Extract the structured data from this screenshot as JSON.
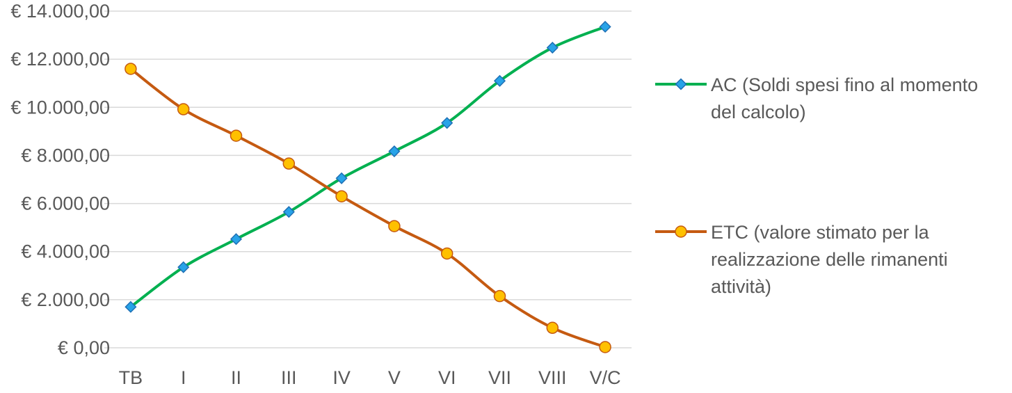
{
  "chart_data": {
    "type": "line",
    "categories": [
      "TB",
      "I",
      "II",
      "III",
      "IV",
      "V",
      "VI",
      "VII",
      "VIII",
      "V/C"
    ],
    "y_ticks": [
      "€ 0,00",
      "€ 2.000,00",
      "€ 4.000,00",
      "€ 6.000,00",
      "€ 8.000,00",
      "€ 10.000,00",
      "€ 12.000,00",
      "€ 14.000,00"
    ],
    "y_tick_values": [
      0,
      2000,
      4000,
      6000,
      8000,
      10000,
      12000,
      14000
    ],
    "ylim": [
      0,
      14000
    ],
    "grid": true,
    "legend_position": "right",
    "series": [
      {
        "name_lines": [
          "AC (Soldi spesi fino al momento",
          "del calcolo)"
        ],
        "values": [
          1700,
          3350,
          4520,
          5650,
          7050,
          8170,
          9350,
          11100,
          12480,
          13350
        ],
        "color": "#00b050",
        "marker": "diamond",
        "marker_fill": "#27a3e8",
        "marker_stroke": "#1f6fb4"
      },
      {
        "name_lines": [
          "ETC (valore stimato per la",
          "realizzazione delle rimanenti",
          "attività)"
        ],
        "values": [
          11600,
          9920,
          8820,
          7660,
          6300,
          5060,
          3920,
          2150,
          830,
          30
        ],
        "color": "#c55a11",
        "marker": "circle",
        "marker_fill": "#ffc000",
        "marker_stroke": "#c55a11"
      }
    ]
  }
}
